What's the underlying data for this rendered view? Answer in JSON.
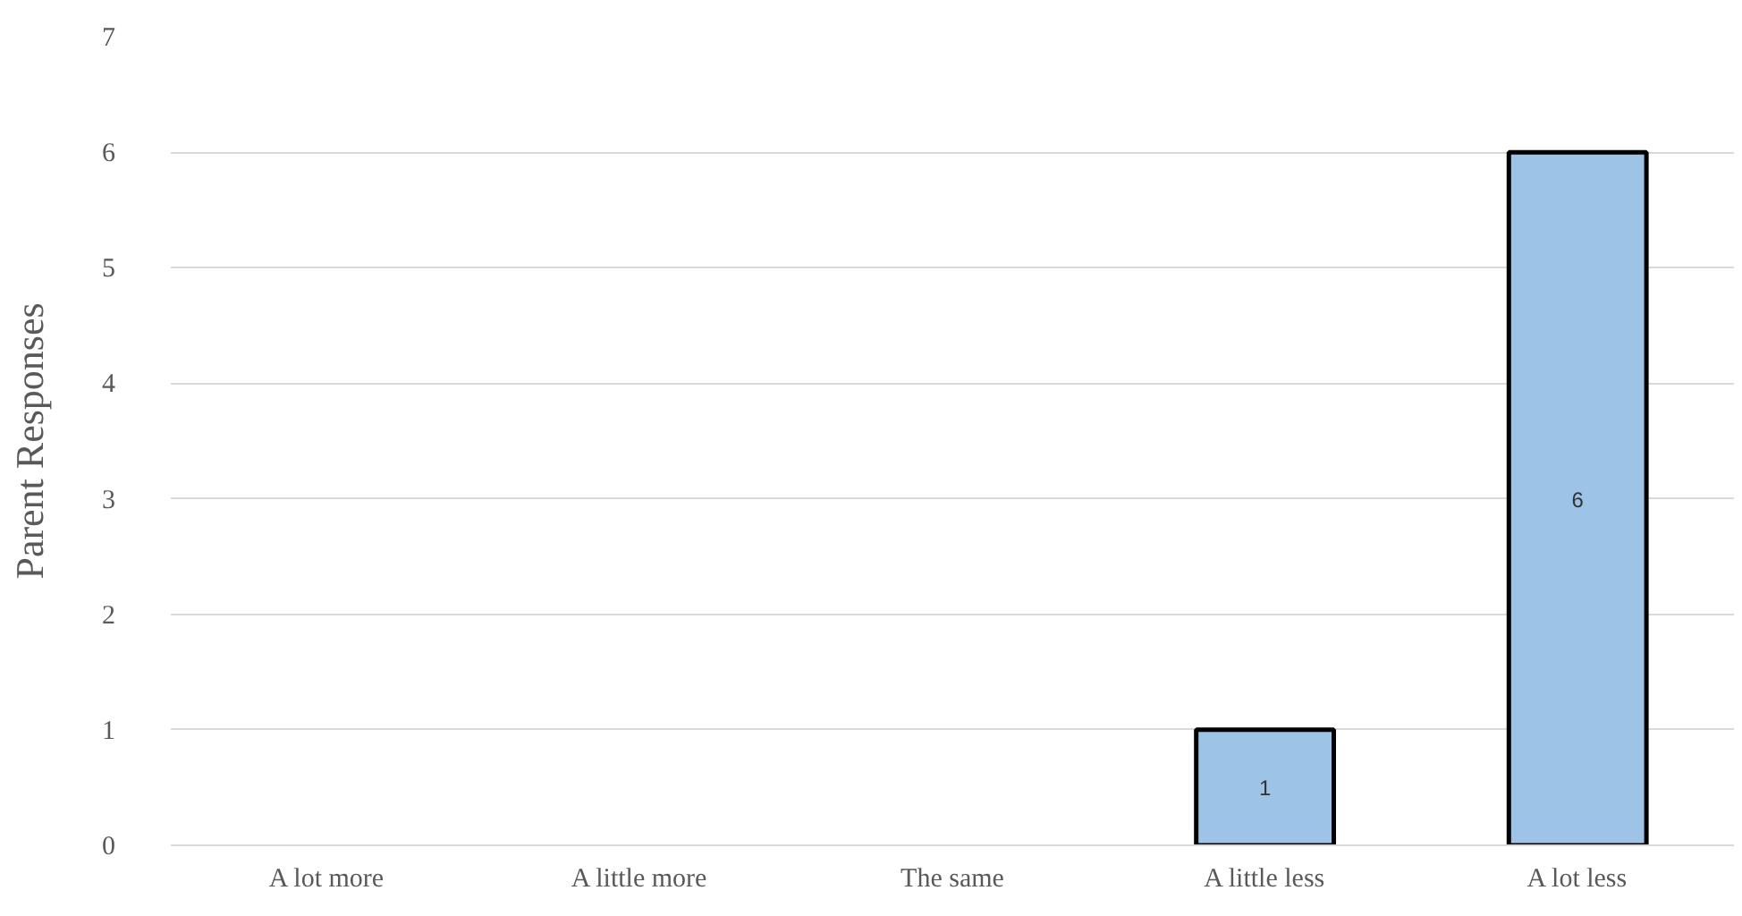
{
  "chart_data": {
    "type": "bar",
    "ylabel": "Parent Responses",
    "categories": [
      "A lot more",
      "A little more",
      "The same",
      "A little less",
      "A lot less"
    ],
    "values": [
      0,
      0,
      0,
      1,
      6
    ],
    "value_labels": [
      null,
      null,
      null,
      "1",
      "6"
    ],
    "color": "#9dc3e6",
    "ylim": [
      0,
      7
    ],
    "yticks": [
      0,
      1,
      2,
      3,
      4,
      5,
      6,
      7
    ],
    "grid": "y"
  }
}
